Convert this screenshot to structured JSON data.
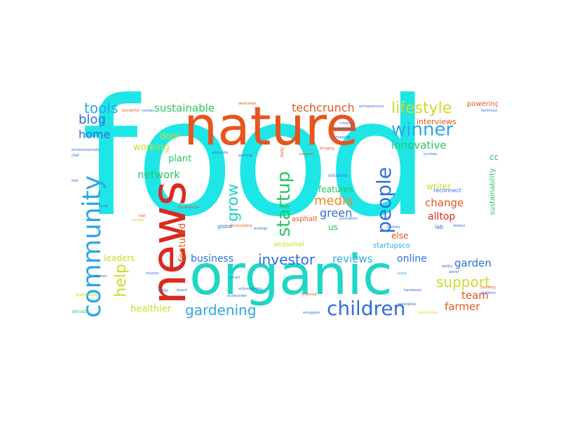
{
  "colors": {
    "cyan": "#1ee6e6",
    "teal": "#1ed6c6",
    "orange_red": "#e8541e",
    "red": "#d92a1e",
    "blue": "#2f6de0",
    "sky": "#2ba7e8",
    "green": "#25c960",
    "lime": "#a6d62b",
    "yellow_green": "#cddb2a",
    "orange": "#f08a24"
  },
  "words": {
    "food": "food",
    "nature": "nature",
    "news": "news",
    "organic": "organic",
    "community": "community",
    "children": "children",
    "people": "people",
    "winner": "winner",
    "lifestyle": "lifestyle",
    "startup": "startup",
    "grow": "grow",
    "help": "help",
    "investor": "investor",
    "gardening": "gardening",
    "support": "support",
    "techcrunch": "techcrunch",
    "sustainable": "sustainable",
    "tools": "tools",
    "blog": "blog",
    "home": "home",
    "working": "working",
    "door": "door",
    "innovative": "innovative",
    "interviews": "interviews",
    "network": "network",
    "plant": "plant",
    "media": "media",
    "green": "green",
    "features": "features",
    "writer": "writer",
    "change": "change",
    "alltop": "alltop",
    "featured": "featured",
    "business": "business",
    "reviews": "reviews",
    "online": "online",
    "garden": "garden",
    "leaders": "leaders",
    "healthier": "healthier",
    "farmer": "farmer",
    "team": "team",
    "else": "else",
    "us": "us",
    "seasonal": "seasonal",
    "asphalt": "asphalt",
    "startupsco": "startupsco",
    "sustainability": "sustainability",
    "co": "co",
    "powering": "powering",
    "reconnect": "reconnect",
    "solutions": "solutions",
    "global": "global",
    "lab": "lab",
    "daily": "daily",
    "bringing": "bringing",
    "environmentally": "environmentally",
    "chef": "chef",
    "preferable": "preferable",
    "altruistic": "altruistic",
    "dedicated": "dedicated",
    "journalism": "journalism",
    "ecology": "ecology",
    "note": "note",
    "board": "board",
    "schoolgarden": "schoolgarden",
    "tcdisrupt": "tcdisrupt",
    "vegetables": "vegetables",
    "institutions": "institutions",
    "hardwood": "hardwood",
    "smuggles": "smuggles",
    "using": "using",
    "bentley": "bentley",
    "always": "always",
    "planting": "planting",
    "platform": "platform",
    "shopping": "shopping",
    "covering": "covering",
    "americorps": "americorps",
    "compost": "compost",
    "advocate": "advocate",
    "pledge": "pledge",
    "foodlifestyle": "foodlifestyle",
    "mission": "mission",
    "kitchen": "kitchen",
    "world": "world",
    "ability": "ability",
    "farmhouse": "farmhouse",
    "encouraging": "encouraging",
    "entrepreneurs": "entrepreneurs",
    "local": "local",
    "real": "real",
    "lunches": "lunches",
    "fuel": "fuel",
    "wonderful": "wonderful",
    "sunday": "sunday",
    "ecofounder": "ecofounder",
    "packing": "packing",
    "smart": "smart"
  }
}
